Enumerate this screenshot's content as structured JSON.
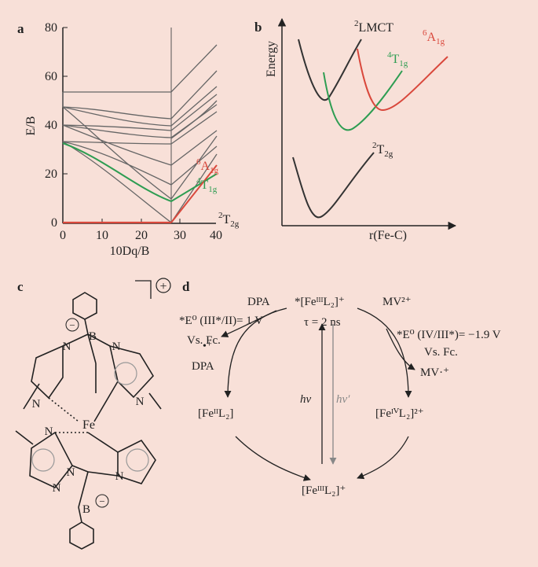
{
  "panel_a": {
    "label": "a",
    "y_axis_label": "E/B",
    "x_axis_label": "10Dq/B",
    "y_ticks": [
      "0",
      "20",
      "40",
      "60",
      "80"
    ],
    "x_ticks": [
      "0",
      "10",
      "20",
      "30",
      "40"
    ],
    "state_labels": [
      {
        "base": "A",
        "sup": "6",
        "sub": "1g",
        "color": "#d9483c"
      },
      {
        "base": "T",
        "sup": "4",
        "sub": "1g",
        "color": "#2e9d52"
      },
      {
        "base": "T",
        "sup": "2",
        "sub": "2g",
        "color": "#222222"
      }
    ]
  },
  "panel_b": {
    "label": "b",
    "y_axis_label": "Energy",
    "x_axis_label": "r(Fe-C)",
    "curve_labels": [
      {
        "base": "LMCT",
        "sup": "2",
        "sub": "",
        "color": "#222222"
      },
      {
        "base": "A",
        "sup": "6",
        "sub": "1g",
        "color": "#d9483c"
      },
      {
        "base": "T",
        "sup": "4",
        "sub": "1g",
        "color": "#2e9d52"
      },
      {
        "base": "T",
        "sup": "2",
        "sub": "2g",
        "color": "#222222"
      }
    ]
  },
  "panel_c": {
    "label": "c",
    "charge": "+",
    "atoms": {
      "fe": "Fe",
      "b": "B",
      "n": "N",
      "minus": "−"
    }
  },
  "panel_d": {
    "label": "d",
    "left_potential": "*E⁰ (III*/II)= 1 V",
    "left_vs": "Vs. Fc.",
    "dpa": "DPA",
    "dpa_radical": "DPA",
    "excited": "*[FeᴵᴵᴵL₂]⁺",
    "mv": "MV²⁺",
    "mv_radical": "MV·⁺",
    "right_potential": "*E⁰ (IV/III*)= −1.9 V",
    "right_vs": "Vs. Fc.",
    "tau": "τ = 2 ns",
    "fe_ii": "[FeᴵᴵL₂]",
    "fe_iv": "[FeᴵⱽL₂]²⁺",
    "ground": "[FeᴵᴵᴵL₂]⁺",
    "hv": "hν",
    "hv_prime": "hν′"
  }
}
